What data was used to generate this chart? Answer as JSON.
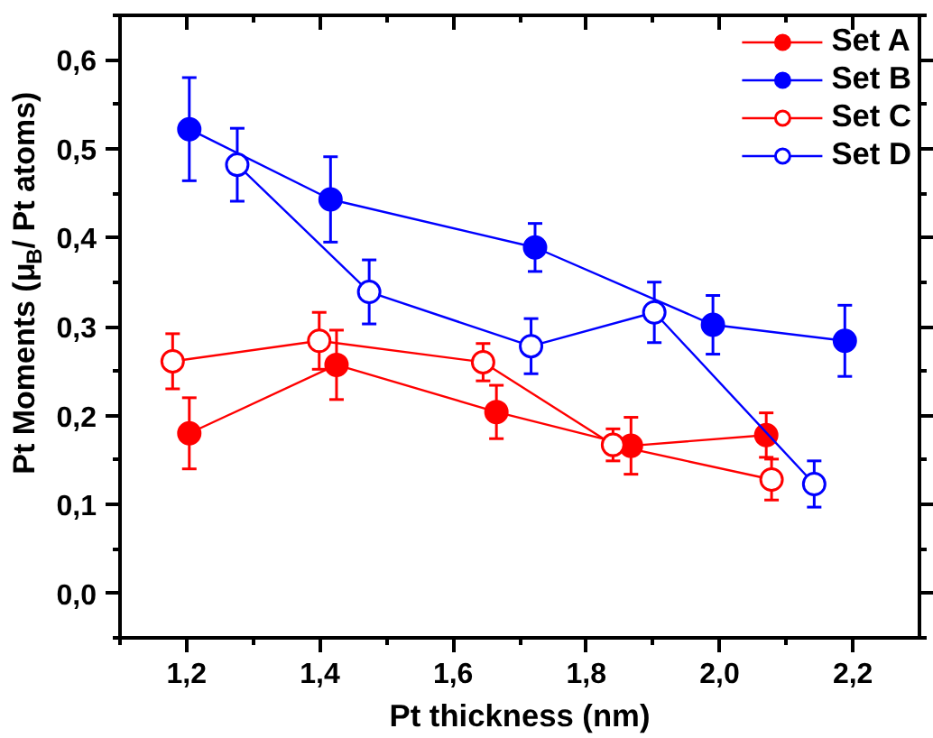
{
  "chart_data": {
    "type": "line",
    "xlabel": "Pt thickness (nm)",
    "ylabel": "Pt Moments (μ$_{B}$/ Pt atoms)",
    "xlim": [
      1.1,
      2.3
    ],
    "ylim": [
      -0.05,
      0.65
    ],
    "xticks": [
      {
        "value": 1.2,
        "label": "1,2"
      },
      {
        "value": 1.4,
        "label": "1,4"
      },
      {
        "value": 1.6,
        "label": "1,6"
      },
      {
        "value": 1.8,
        "label": "1,8"
      },
      {
        "value": 2.0,
        "label": "2,0"
      },
      {
        "value": 2.2,
        "label": "2,2"
      }
    ],
    "yticks": [
      {
        "value": 0.0,
        "label": "0,0"
      },
      {
        "value": 0.1,
        "label": "0,1"
      },
      {
        "value": 0.2,
        "label": "0,2"
      },
      {
        "value": 0.3,
        "label": "0,3"
      },
      {
        "value": 0.4,
        "label": "0,4"
      },
      {
        "value": 0.5,
        "label": "0,5"
      },
      {
        "value": 0.6,
        "label": "0,6"
      }
    ],
    "legend": "top right",
    "grid": false,
    "marker": "circle",
    "line_style": "solid",
    "series": [
      {
        "name": "Set A",
        "color": "#ff0000",
        "x": [
          1.204,
          1.425,
          1.665,
          1.867,
          2.07
        ],
        "values": [
          0.18,
          0.257,
          0.204,
          0.166,
          0.178
        ],
        "errors": [
          0.04,
          0.039,
          0.03,
          0.032,
          0.025
        ]
      },
      {
        "name": "Set B",
        "color": "#0000ff",
        "x": [
          1.204,
          1.416,
          1.723,
          1.99,
          2.188
        ],
        "values": [
          0.522,
          0.443,
          0.389,
          0.302,
          0.284
        ],
        "errors": [
          0.058,
          0.048,
          0.027,
          0.033,
          0.04
        ]
      },
      {
        "name": "Set C",
        "color": "#ff0000",
        "marker": "circle_open",
        "x": [
          1.179,
          1.399,
          1.645,
          1.84,
          2.078
        ],
        "values": [
          0.261,
          0.284,
          0.26,
          0.167,
          0.128
        ],
        "errors": [
          0.031,
          0.032,
          0.021,
          0.018,
          0.023
        ]
      },
      {
        "name": "Set D",
        "color": "#0000ff",
        "marker": "circle_open",
        "x": [
          1.276,
          1.474,
          1.717,
          1.902,
          2.142
        ],
        "values": [
          0.482,
          0.339,
          0.278,
          0.316,
          0.123
        ],
        "errors": [
          0.041,
          0.036,
          0.031,
          0.034,
          0.026
        ]
      }
    ]
  }
}
